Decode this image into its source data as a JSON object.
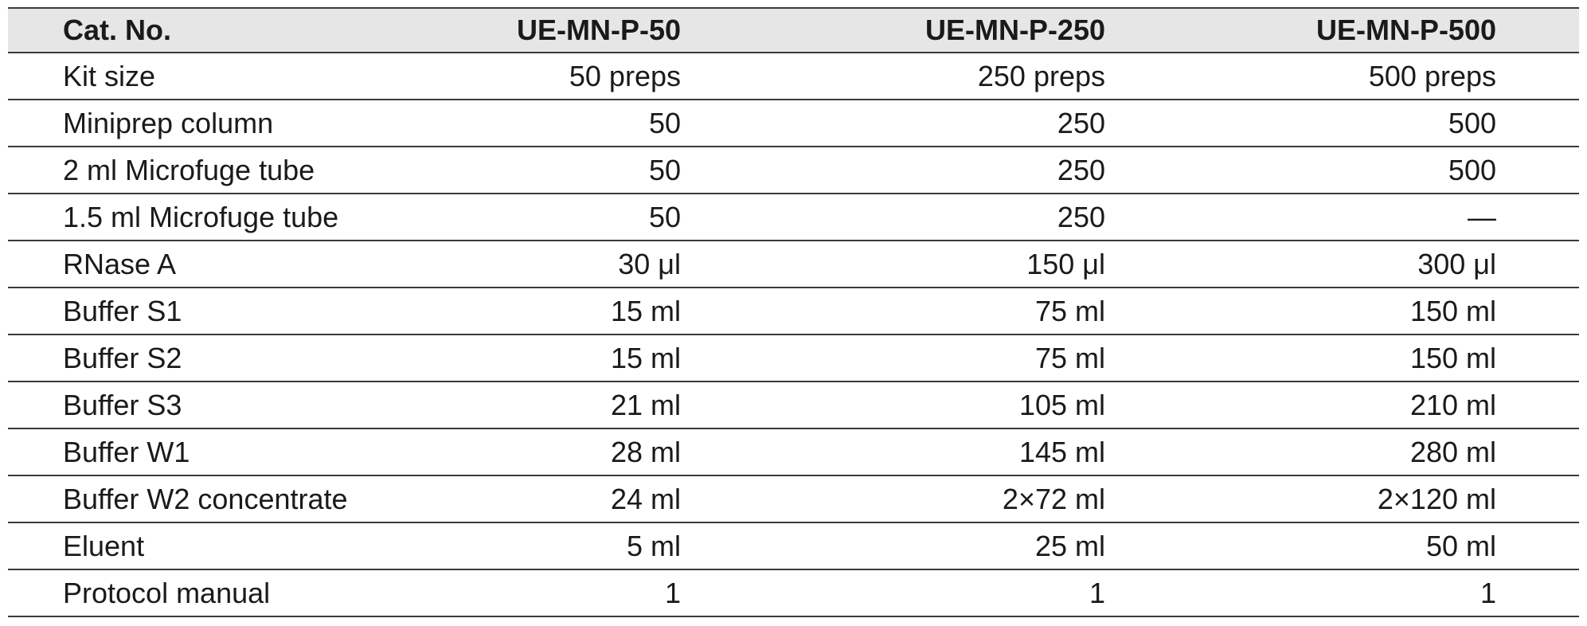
{
  "table": {
    "header": [
      "Cat. No.",
      "UE-MN-P-50",
      "UE-MN-P-250",
      "UE-MN-P-500"
    ],
    "rows": [
      [
        "Kit size",
        "50 preps",
        "250 preps",
        "500 preps"
      ],
      [
        "Miniprep column",
        "50",
        "250",
        "500"
      ],
      [
        "2 ml Microfuge tube",
        "50",
        "250",
        "500"
      ],
      [
        "1.5 ml Microfuge tube",
        "50",
        "250",
        "—"
      ],
      [
        "RNase A",
        "30 μl",
        "150 μl",
        "300 μl"
      ],
      [
        "Buffer S1",
        "15 ml",
        "75 ml",
        "150 ml"
      ],
      [
        "Buffer S2",
        "15 ml",
        "75 ml",
        "150 ml"
      ],
      [
        "Buffer S3",
        "21 ml",
        "105 ml",
        "210 ml"
      ],
      [
        "Buffer W1",
        "28 ml",
        "145 ml",
        "280 ml"
      ],
      [
        "Buffer W2 concentrate",
        "24 ml",
        "2×72 ml",
        "2×120 ml"
      ],
      [
        "Eluent",
        "5 ml",
        "25 ml",
        "50 ml"
      ],
      [
        "Protocol manual",
        "1",
        "1",
        "1"
      ]
    ]
  }
}
